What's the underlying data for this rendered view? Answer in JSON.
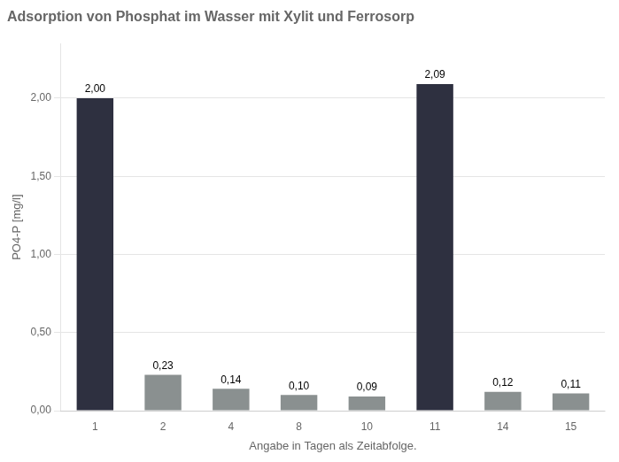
{
  "chart_data": {
    "type": "bar",
    "title": "Adsorption von Phosphat im Wasser mit Xylit und Ferrosorp",
    "x_label": "Angabe in Tagen als Zeitabfolge.",
    "y_label": "PO4-P [mg/l]",
    "categories": [
      "1",
      "2",
      "4",
      "8",
      "10",
      "11",
      "14",
      "15"
    ],
    "values": [
      2.0,
      0.23,
      0.14,
      0.1,
      0.09,
      2.09,
      0.12,
      0.11
    ],
    "value_labels": [
      "2,00",
      "0,23",
      "0,14",
      "0,10",
      "0,09",
      "2,09",
      "0,12",
      "0,11"
    ],
    "colors": [
      "#2e3040",
      "#8a9090",
      "#8a9090",
      "#8a9090",
      "#8a9090",
      "#2e3040",
      "#8a9090",
      "#8a9090"
    ],
    "ylim": [
      0,
      2.35
    ],
    "yticks": [
      {
        "value": 0.0,
        "label": "0,00"
      },
      {
        "value": 0.5,
        "label": "0,50"
      },
      {
        "value": 1.0,
        "label": "1,00"
      },
      {
        "value": 1.5,
        "label": "1,50"
      },
      {
        "value": 2.0,
        "label": "2,00"
      }
    ],
    "grid": true,
    "data_labels": true
  }
}
